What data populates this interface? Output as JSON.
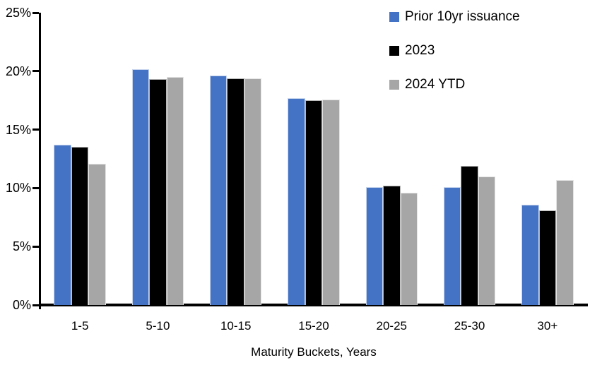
{
  "chart_data": {
    "type": "bar",
    "title": "",
    "xlabel": "Maturity Buckets, Years",
    "ylabel": "",
    "categories": [
      "1-5",
      "5-10",
      "10-15",
      "15-20",
      "20-25",
      "25-30",
      "30+"
    ],
    "series": [
      {
        "name": "Prior 10yr issuance",
        "color": "#4472C4",
        "values": [
          13.7,
          20.2,
          19.6,
          17.7,
          10.1,
          10.1,
          8.6
        ]
      },
      {
        "name": "2023",
        "color": "#000000",
        "values": [
          13.5,
          19.3,
          19.4,
          17.5,
          10.2,
          11.9,
          8.1
        ]
      },
      {
        "name": "2024 YTD",
        "color": "#A6A6A6",
        "values": [
          12.1,
          19.5,
          19.4,
          17.6,
          9.6,
          11.0,
          10.7
        ]
      }
    ],
    "ylim": [
      0,
      25
    ],
    "y_tick_values": [
      0,
      5,
      10,
      15,
      20,
      25
    ],
    "y_tick_labels": [
      "0%",
      "5%",
      "10%",
      "15%",
      "20%",
      "25%"
    ],
    "grid": false,
    "legend_position": "top-right",
    "axis_color": "#000000",
    "background_color": "#FFFFFF"
  }
}
